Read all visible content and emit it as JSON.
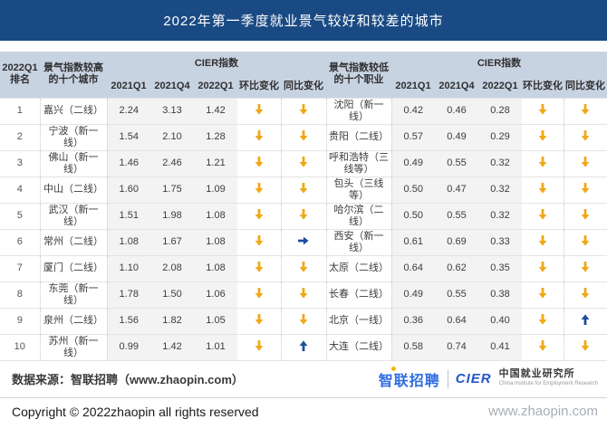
{
  "title": "2022年第一季度就业景气较好和较差的城市",
  "table": {
    "left": {
      "rank_header": "2022Q1排名",
      "group_header": "景气指数较高的十个城市",
      "cier_header": "CIER指数",
      "col_headers": [
        "2021Q1",
        "2021Q4",
        "2022Q1",
        "环比变化",
        "同比变化"
      ],
      "rows": [
        {
          "rank": "1",
          "city": "嘉兴（二线）",
          "q1_2021": "2.24",
          "q4_2021": "3.13",
          "q1_2022": "1.42",
          "qoq": "down",
          "yoy": "down"
        },
        {
          "rank": "2",
          "city": "宁波（新一线）",
          "q1_2021": "1.54",
          "q4_2021": "2.10",
          "q1_2022": "1.28",
          "qoq": "down",
          "yoy": "down"
        },
        {
          "rank": "3",
          "city": "佛山（新一线）",
          "q1_2021": "1.46",
          "q4_2021": "2.46",
          "q1_2022": "1.21",
          "qoq": "down",
          "yoy": "down"
        },
        {
          "rank": "4",
          "city": "中山（二线）",
          "q1_2021": "1.60",
          "q4_2021": "1.75",
          "q1_2022": "1.09",
          "qoq": "down",
          "yoy": "down"
        },
        {
          "rank": "5",
          "city": "武汉（新一线）",
          "q1_2021": "1.51",
          "q4_2021": "1.98",
          "q1_2022": "1.08",
          "qoq": "down",
          "yoy": "down"
        },
        {
          "rank": "6",
          "city": "常州（二线）",
          "q1_2021": "1.08",
          "q4_2021": "1.67",
          "q1_2022": "1.08",
          "qoq": "down",
          "yoy": "right"
        },
        {
          "rank": "7",
          "city": "厦门（二线）",
          "q1_2021": "1.10",
          "q4_2021": "2.08",
          "q1_2022": "1.08",
          "qoq": "down",
          "yoy": "down"
        },
        {
          "rank": "8",
          "city": "东莞（新一线）",
          "q1_2021": "1.78",
          "q4_2021": "1.50",
          "q1_2022": "1.06",
          "qoq": "down",
          "yoy": "down"
        },
        {
          "rank": "9",
          "city": "泉州（二线）",
          "q1_2021": "1.56",
          "q4_2021": "1.82",
          "q1_2022": "1.05",
          "qoq": "down",
          "yoy": "down"
        },
        {
          "rank": "10",
          "city": "苏州（新一线）",
          "q1_2021": "0.99",
          "q4_2021": "1.42",
          "q1_2022": "1.01",
          "qoq": "down",
          "yoy": "up"
        }
      ]
    },
    "right": {
      "group_header": "景气指数较低的十个职业",
      "cier_header": "CIER指数",
      "col_headers": [
        "2021Q1",
        "2021Q4",
        "2022Q1",
        "环比变化",
        "同比变化"
      ],
      "rows": [
        {
          "city": "沈阳（新一线）",
          "q1_2021": "0.42",
          "q4_2021": "0.46",
          "q1_2022": "0.28",
          "qoq": "down",
          "yoy": "down"
        },
        {
          "city": "贵阳（二线）",
          "q1_2021": "0.57",
          "q4_2021": "0.49",
          "q1_2022": "0.29",
          "qoq": "down",
          "yoy": "down"
        },
        {
          "city": "呼和浩特（三线等）",
          "q1_2021": "0.49",
          "q4_2021": "0.55",
          "q1_2022": "0.32",
          "qoq": "down",
          "yoy": "down"
        },
        {
          "city": "包头（三线等）",
          "q1_2021": "0.50",
          "q4_2021": "0.47",
          "q1_2022": "0.32",
          "qoq": "down",
          "yoy": "down"
        },
        {
          "city": "哈尔滨（二线）",
          "q1_2021": "0.50",
          "q4_2021": "0.55",
          "q1_2022": "0.32",
          "qoq": "down",
          "yoy": "down"
        },
        {
          "city": "西安（新一线）",
          "q1_2021": "0.61",
          "q4_2021": "0.69",
          "q1_2022": "0.33",
          "qoq": "down",
          "yoy": "down"
        },
        {
          "city": "太原（二线）",
          "q1_2021": "0.64",
          "q4_2021": "0.62",
          "q1_2022": "0.35",
          "qoq": "down",
          "yoy": "down"
        },
        {
          "city": "长春（二线）",
          "q1_2021": "0.49",
          "q4_2021": "0.55",
          "q1_2022": "0.38",
          "qoq": "down",
          "yoy": "down"
        },
        {
          "city": "北京（一线）",
          "q1_2021": "0.36",
          "q4_2021": "0.64",
          "q1_2022": "0.40",
          "qoq": "down",
          "yoy": "up"
        },
        {
          "city": "大连（二线）",
          "q1_2021": "0.58",
          "q4_2021": "0.74",
          "q1_2022": "0.41",
          "qoq": "down",
          "yoy": "down"
        }
      ]
    }
  },
  "footer": {
    "source": "数据来源：智联招聘（www.zhaopin.com）",
    "copyright": "Copyright © 2022zhaopin all rights reserved",
    "logo_zhaopin": "智联招聘",
    "logo_cier": "CIER",
    "logo_cier_cn": "中国就业研究所",
    "logo_cier_en": "China Institute for Employment Research",
    "watermark": "www.zhaopin.com"
  },
  "colors": {
    "title_bar": "#1a4a83",
    "header_band": "#c8d3e2",
    "value_column_shade": "#f3f3f3",
    "arrow_gold": "#f0a818",
    "arrow_blue": "#1c4d9b",
    "zhaopin_logo_blue": "#2f6be1"
  }
}
